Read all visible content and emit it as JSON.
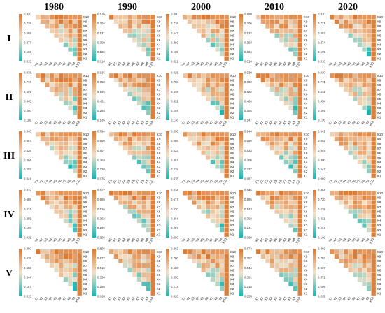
{
  "figure": {
    "years": [
      "1980",
      "1990",
      "2000",
      "2010",
      "2020"
    ],
    "regions": [
      "I",
      "II",
      "III",
      "IV",
      "V"
    ]
  },
  "colors": {
    "high": "#dd7a32",
    "mid": "#f2e0c8",
    "low": "#14b5b4"
  },
  "chart_data": {
    "type": "heatmap",
    "layout": "grid of lower-triangular correlation heatmaps (rows = regions, columns = years)",
    "variables": [
      "X1",
      "X2",
      "X3",
      "X4",
      "X5",
      "X6",
      "X7",
      "X8",
      "X9",
      "X10"
    ],
    "colorbar_ticks": {
      "I": [
        [
          "0.920",
          "0.739",
          "0.558",
          "0.377",
          "0.196",
          "0.015"
        ],
        [
          "0.876",
          "0.704",
          "0.531",
          "0.359",
          "0.186",
          "0.014"
        ],
        [
          "0.890",
          "0.716",
          "0.542",
          "0.369",
          "0.195",
          "0.021"
        ],
        [
          "0.880",
          "0.706",
          "0.532",
          "0.358",
          "0.184",
          "0.010"
        ],
        [
          "0.910",
          "0.731",
          "0.552",
          "0.374",
          "0.195",
          "0.016"
        ]
      ],
      "II": [
        [
          "0.938",
          "0.774",
          "0.609",
          "0.445",
          "0.280",
          "0.116"
        ],
        [
          "0.926",
          "0.768",
          "0.609",
          "0.451",
          "0.293",
          "0.135"
        ],
        [
          "0.926",
          "0.768",
          "0.610",
          "0.452",
          "0.294",
          "0.136"
        ],
        [
          "0.939",
          "0.780",
          "0.622",
          "0.464",
          "0.305",
          "0.147"
        ],
        [
          "0.930",
          "0.771",
          "0.612",
          "0.454",
          "0.295",
          "0.136"
        ]
      ],
      "III": [
        [
          "0.840",
          "0.687",
          "0.526",
          "0.364",
          "0.203",
          "0.041"
        ],
        [
          "0.794",
          "0.650",
          "0.507",
          "0.363",
          "0.220",
          "0.076"
        ],
        [
          "0.836",
          "0.686",
          "0.533",
          "0.381",
          "0.228",
          "0.076"
        ],
        [
          "0.840",
          "0.680",
          "0.533",
          "0.386",
          "0.237",
          "0.087"
        ],
        [
          "0.842",
          "0.692",
          "0.544",
          "0.396",
          "0.247",
          "0.099"
        ]
      ],
      "IV": [
        [
          "0.832",
          "0.686",
          "0.521",
          "0.355",
          "0.190",
          "0.025"
        ],
        [
          "0.822",
          "0.669",
          "0.516",
          "0.362",
          "0.209",
          "0.056"
        ],
        [
          "0.834",
          "0.677",
          "0.520",
          "0.364",
          "0.207",
          "0.050"
        ],
        [
          "0.846",
          "0.695",
          "0.543",
          "0.392",
          "0.241",
          "0.090"
        ],
        [
          "0.864",
          "0.730",
          "0.578",
          "0.421",
          "0.264",
          "0.109"
        ]
      ],
      "V": [
        [
          "0.850",
          "0.676",
          "0.502",
          "0.344",
          "0.187",
          "0.015"
        ],
        [
          "0.856",
          "0.677",
          "0.516",
          "0.356",
          "0.195",
          "0.028"
        ],
        [
          "0.882",
          "0.700",
          "0.530",
          "0.350",
          "0.214",
          "0.028"
        ],
        [
          "0.874",
          "0.707",
          "0.544",
          "0.381",
          "0.218",
          "0.055"
        ],
        [
          "0.869",
          "0.703",
          "0.537",
          "0.371",
          "0.205",
          "0.039"
        ]
      ]
    },
    "cell_values": "small correlation coefficients printed in every lower-triangle cell (illegible at this resolution)"
  }
}
